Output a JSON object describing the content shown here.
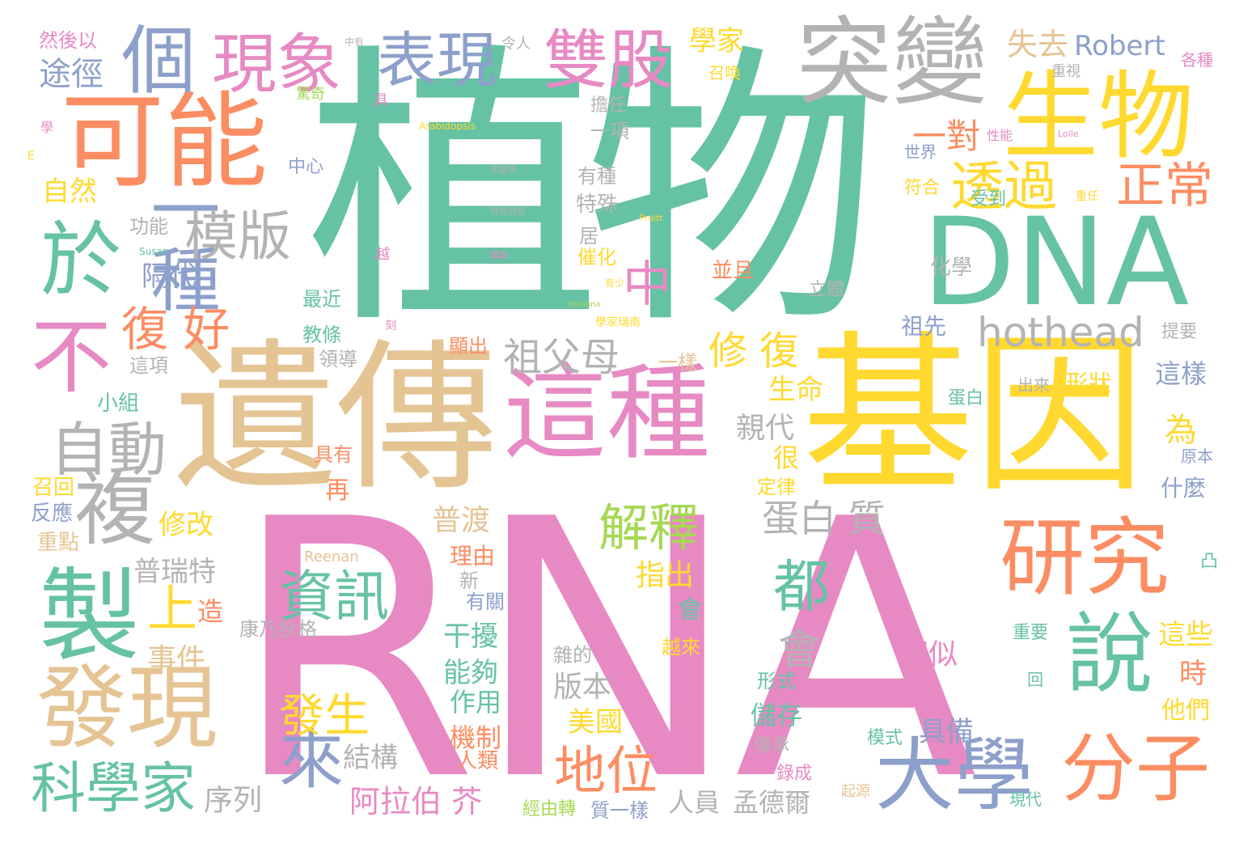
{
  "palette": {
    "teal": "#66c2a5",
    "orange": "#fc8d62",
    "blue": "#8da0cb",
    "pink": "#e78ac3",
    "green": "#a6d854",
    "yellow": "#ffd92f",
    "tan": "#e5c494",
    "gray": "#b3b3b3"
  },
  "words": [
    {
      "text": "RNA",
      "color": "pink"
    },
    {
      "text": "植物",
      "color": "teal"
    },
    {
      "text": "遺傳",
      "color": "tan"
    },
    {
      "text": "基因",
      "color": "yellow"
    },
    {
      "text": "這種",
      "color": "pink"
    },
    {
      "text": "DNA",
      "color": "teal"
    },
    {
      "text": "生物",
      "color": "yellow"
    },
    {
      "text": "突變",
      "color": "gray"
    },
    {
      "text": "可能",
      "color": "orange"
    },
    {
      "text": "製",
      "color": "teal"
    },
    {
      "text": "發現",
      "color": "tan"
    },
    {
      "text": "研究",
      "color": "orange"
    },
    {
      "text": "說",
      "color": "teal"
    },
    {
      "text": "大學",
      "color": "blue"
    },
    {
      "text": "分子",
      "color": "orange"
    },
    {
      "text": "於",
      "color": "teal"
    },
    {
      "text": "不",
      "color": "pink"
    },
    {
      "text": "複",
      "color": "gray"
    },
    {
      "text": "個",
      "color": "blue"
    },
    {
      "text": "一種",
      "color": "blue"
    },
    {
      "text": "現象",
      "color": "pink"
    },
    {
      "text": "雙股",
      "color": "pink"
    },
    {
      "text": "表現",
      "color": "blue"
    },
    {
      "text": "自動",
      "color": "gray"
    },
    {
      "text": "模版",
      "color": "gray"
    },
    {
      "text": "hothead",
      "color": "gray"
    },
    {
      "text": "透過",
      "color": "yellow"
    },
    {
      "text": "正常",
      "color": "orange"
    },
    {
      "text": "祖父母",
      "color": "gray"
    },
    {
      "text": "都",
      "color": "teal"
    },
    {
      "text": "資訊",
      "color": "teal"
    },
    {
      "text": "解釋",
      "color": "green"
    },
    {
      "text": "地位",
      "color": "orange"
    },
    {
      "text": "來",
      "color": "blue"
    },
    {
      "text": "科學家",
      "color": "teal"
    },
    {
      "text": "發生",
      "color": "yellow"
    },
    {
      "text": "中",
      "color": "pink"
    },
    {
      "text": "Robert",
      "color": "blue"
    },
    {
      "text": "失去",
      "color": "tan"
    },
    {
      "text": "一對",
      "color": "orange"
    },
    {
      "text": "修 復",
      "color": "yellow"
    },
    {
      "text": "蛋白 質",
      "color": "gray"
    },
    {
      "text": "上",
      "color": "yellow"
    },
    {
      "text": "復 好",
      "color": "orange"
    },
    {
      "text": "途徑",
      "color": "blue"
    },
    {
      "text": "然後以",
      "color": "pink"
    },
    {
      "text": "學家",
      "color": "yellow"
    },
    {
      "text": "自然",
      "color": "yellow"
    },
    {
      "text": "中心",
      "color": "blue"
    },
    {
      "text": "功能",
      "color": "gray"
    },
    {
      "text": "隔代",
      "color": "blue"
    },
    {
      "text": "小組",
      "color": "teal"
    },
    {
      "text": "反應",
      "color": "blue"
    },
    {
      "text": "召回",
      "color": "yellow"
    },
    {
      "text": "修改",
      "color": "yellow"
    },
    {
      "text": "重點",
      "color": "tan"
    },
    {
      "text": "普瑞特",
      "color": "gray"
    },
    {
      "text": "事件",
      "color": "tan"
    },
    {
      "text": "造",
      "color": "orange"
    },
    {
      "text": "康乃狄格",
      "color": "gray"
    },
    {
      "text": "普渡",
      "color": "tan"
    },
    {
      "text": "理由",
      "color": "orange"
    },
    {
      "text": "指出",
      "color": "yellow"
    },
    {
      "text": "干擾",
      "color": "teal"
    },
    {
      "text": "能夠",
      "color": "teal"
    },
    {
      "text": "作用",
      "color": "teal"
    },
    {
      "text": "機制",
      "color": "orange"
    },
    {
      "text": "人類",
      "color": "orange"
    },
    {
      "text": "結構",
      "color": "gray"
    },
    {
      "text": "序列",
      "color": "gray"
    },
    {
      "text": "阿拉伯 芥",
      "color": "pink"
    },
    {
      "text": "版本",
      "color": "gray"
    },
    {
      "text": "美國",
      "color": "yellow"
    },
    {
      "text": "人員",
      "color": "gray"
    },
    {
      "text": "孟德爾",
      "color": "gray"
    },
    {
      "text": "具備",
      "color": "blue"
    },
    {
      "text": "儲存",
      "color": "teal"
    },
    {
      "text": "相似",
      "color": "pink"
    },
    {
      "text": "會",
      "color": "gray"
    },
    {
      "text": "親代",
      "color": "gray"
    },
    {
      "text": "生命",
      "color": "yellow"
    },
    {
      "text": "很",
      "color": "yellow"
    },
    {
      "text": "定律",
      "color": "yellow"
    },
    {
      "text": "為",
      "color": "yellow"
    },
    {
      "text": "什麼",
      "color": "blue"
    },
    {
      "text": "這樣",
      "color": "blue"
    },
    {
      "text": "形狀",
      "color": "yellow"
    },
    {
      "text": "這些",
      "color": "yellow"
    },
    {
      "text": "時",
      "color": "orange"
    },
    {
      "text": "他們",
      "color": "yellow"
    },
    {
      "text": "化學",
      "color": "gray"
    },
    {
      "text": "祖先",
      "color": "blue"
    },
    {
      "text": "立體",
      "color": "gray"
    },
    {
      "text": "符合",
      "color": "yellow"
    },
    {
      "text": "受到",
      "color": "teal"
    },
    {
      "text": "世界",
      "color": "blue"
    },
    {
      "text": "有種",
      "color": "gray"
    },
    {
      "text": "特殊",
      "color": "gray"
    },
    {
      "text": "居",
      "color": "gray"
    },
    {
      "text": "催化",
      "color": "yellow"
    },
    {
      "text": "一項",
      "color": "gray"
    },
    {
      "text": "擔任",
      "color": "gray"
    },
    {
      "text": "並且",
      "color": "orange"
    },
    {
      "text": "最近",
      "color": "teal"
    },
    {
      "text": "教條",
      "color": "teal"
    },
    {
      "text": "領導",
      "color": "gray"
    },
    {
      "text": "這項",
      "color": "gray"
    },
    {
      "text": "顯出",
      "color": "orange"
    },
    {
      "text": "一樣",
      "color": "tan"
    },
    {
      "text": "具有",
      "color": "orange"
    },
    {
      "text": "再",
      "color": "orange"
    },
    {
      "text": "刻",
      "color": "pink"
    },
    {
      "text": "新",
      "color": "gray"
    },
    {
      "text": "有關",
      "color": "blue"
    },
    {
      "text": "會",
      "color": "teal"
    },
    {
      "text": "雜的",
      "color": "gray"
    },
    {
      "text": "越來",
      "color": "yellow"
    },
    {
      "text": "形式",
      "color": "teal"
    },
    {
      "text": "傳承",
      "color": "gray"
    },
    {
      "text": "模式",
      "color": "teal"
    },
    {
      "text": "錄成",
      "color": "pink"
    },
    {
      "text": "起源",
      "color": "tan"
    },
    {
      "text": "質一樣",
      "color": "blue"
    },
    {
      "text": "經由轉",
      "color": "green"
    },
    {
      "text": "現代",
      "color": "teal"
    },
    {
      "text": "蛋白",
      "color": "teal"
    },
    {
      "text": "出來",
      "color": "gray"
    },
    {
      "text": "重要",
      "color": "teal"
    },
    {
      "text": "回",
      "color": "teal"
    },
    {
      "text": "提要",
      "color": "gray"
    },
    {
      "text": "原本",
      "color": "blue"
    },
    {
      "text": "各種",
      "color": "pink"
    },
    {
      "text": "召喚",
      "color": "yellow"
    },
    {
      "text": "重視",
      "color": "gray"
    },
    {
      "text": "驚奇",
      "color": "green"
    },
    {
      "text": "具",
      "color": "pink"
    },
    {
      "text": "令人",
      "color": "gray"
    },
    {
      "text": "性能",
      "color": "pink"
    },
    {
      "text": "重任",
      "color": "yellow"
    },
    {
      "text": "Arabidopsis",
      "color": "yellow"
    },
    {
      "text": "Lolle",
      "color": "pink"
    },
    {
      "text": "Pruitt",
      "color": "yellow"
    },
    {
      "text": "Susan",
      "color": "teal"
    },
    {
      "text": "thaliana",
      "color": "green"
    },
    {
      "text": "Reenan",
      "color": "tan"
    },
    {
      "text": "學家瑞南",
      "color": "yellow"
    },
    {
      "text": "學",
      "color": "pink"
    },
    {
      "text": "E",
      "color": "yellow"
    },
    {
      "text": "越",
      "color": "pink"
    },
    {
      "text": "有少",
      "color": "yellow"
    },
    {
      "text": "中有",
      "color": "gray"
    },
    {
      "text": "凸",
      "color": "teal"
    },
    {
      "text": "突變率",
      "color": "gray"
    },
    {
      "text": "奇怪的是",
      "color": "gray"
    },
    {
      "text": "稱為",
      "color": "pink"
    }
  ]
}
